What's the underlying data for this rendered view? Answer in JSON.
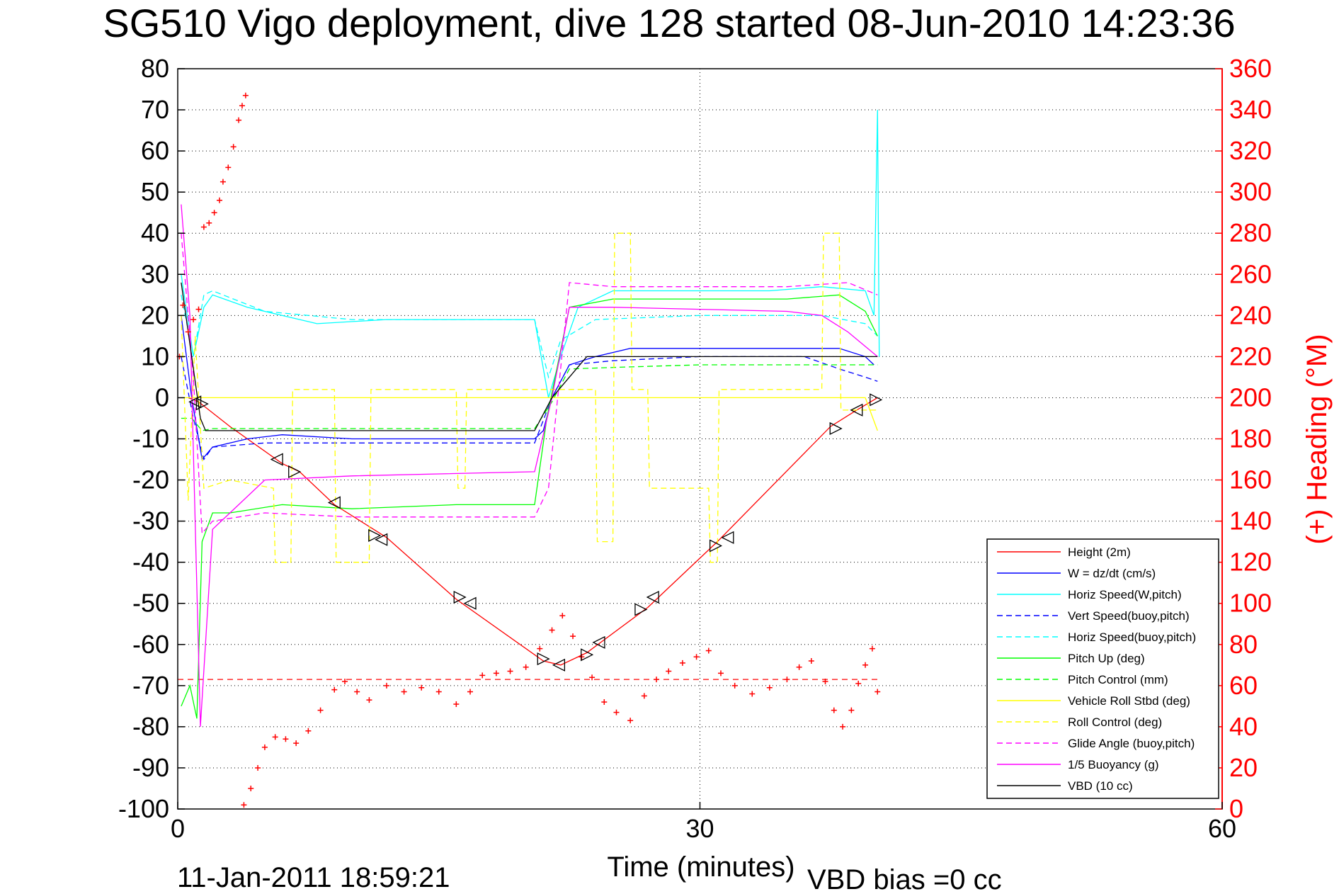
{
  "chart_data": {
    "type": "line",
    "title": "SG510 Vigo deployment, dive 128 started 08-Jun-2010 14:23:36",
    "xlabel": "Time (minutes)",
    "ylabel_right": "(+) Heading (°M)",
    "xlim": [
      0,
      60
    ],
    "ylim": [
      -100,
      80
    ],
    "ylim_right": [
      0,
      360
    ],
    "x_ticks": [
      "0",
      "30",
      "60"
    ],
    "y_ticks": [
      "80",
      "70",
      "60",
      "50",
      "40",
      "30",
      "20",
      "10",
      "0",
      "-10",
      "-20",
      "-30",
      "-40",
      "-50",
      "-60",
      "-70",
      "-80",
      "-90",
      "-100"
    ],
    "y_ticks_right": [
      "360",
      "340",
      "320",
      "300",
      "280",
      "260",
      "240",
      "220",
      "200",
      "180",
      "160",
      "140",
      "120",
      "100",
      "80",
      "60",
      "40",
      "20",
      "0"
    ],
    "grid": true,
    "legend_position": "bottom-right",
    "footer_left": "11-Jan-2011 18:59:21",
    "footer_right": "VBD bias =0 cc",
    "series": [
      {
        "name": "Height (2m)",
        "color": "#ff0000",
        "style": "solid",
        "x": [
          0.6,
          1.2,
          3,
          6,
          7,
          9,
          12,
          16,
          21,
          22,
          23.5,
          27,
          31,
          37.5,
          39,
          40.2
        ],
        "y": [
          0,
          -1,
          -7,
          -16,
          -18,
          -26,
          -34,
          -49,
          -64,
          -65,
          -62,
          -51,
          -35,
          -7,
          -3,
          0
        ]
      },
      {
        "name": "W = dz/dt (cm/s)",
        "color": "#0000ff",
        "style": "solid",
        "x": [
          0.2,
          0.8,
          1.4,
          2,
          4,
          6,
          10,
          14,
          18,
          20.5,
          21,
          21.5,
          22.5,
          24,
          26,
          30,
          34,
          36,
          38,
          39.5,
          40
        ],
        "y": [
          20,
          0,
          -15,
          -12,
          -10,
          -9,
          -10,
          -10,
          -10,
          -10,
          -8,
          0,
          8,
          10,
          12,
          12,
          12,
          12,
          12,
          10,
          8
        ]
      },
      {
        "name": "Horiz Speed(W,pitch)",
        "color": "#00ffff",
        "style": "solid",
        "x": [
          0.2,
          0.9,
          1.5,
          2,
          4,
          8,
          12,
          16,
          20.5,
          21.3,
          22,
          23,
          25,
          30,
          34,
          37,
          39.5,
          40,
          40.2,
          40.3
        ],
        "y": [
          30,
          10,
          22,
          25,
          22,
          18,
          19,
          19,
          19,
          0,
          10,
          22,
          26,
          26,
          26,
          27,
          26,
          20,
          70,
          10
        ]
      },
      {
        "name": "Vert Speed(buoy,pitch)",
        "color": "#0000ff",
        "style": "dashed",
        "x": [
          0.2,
          0.9,
          1.5,
          2,
          5,
          10,
          15,
          20.5,
          21.5,
          22.5,
          25,
          30,
          36,
          38,
          39.5,
          40.2
        ],
        "y": [
          10,
          -5,
          -15,
          -12,
          -11,
          -11,
          -11,
          -11,
          0,
          8,
          9,
          10,
          10,
          7,
          5,
          4
        ]
      },
      {
        "name": "Horiz Speed(buoy,pitch)",
        "color": "#00ffff",
        "style": "dashed",
        "x": [
          0.2,
          0.9,
          1.5,
          2,
          5,
          10,
          20.5,
          21.3,
          22,
          24,
          30,
          37,
          39.5,
          40.2
        ],
        "y": [
          25,
          10,
          25,
          26,
          21,
          19,
          19,
          5,
          14,
          19,
          20,
          20,
          18,
          15
        ]
      },
      {
        "name": "Pitch Up (deg)",
        "color": "#00ff00",
        "style": "solid",
        "x": [
          0.2,
          0.7,
          1.1,
          1.4,
          2,
          3,
          6,
          10,
          16,
          20.5,
          21.2,
          22.5,
          25,
          30,
          35,
          38,
          39.5,
          40.2
        ],
        "y": [
          -75,
          -70,
          -78,
          -35,
          -28,
          -28,
          -26,
          -27,
          -26,
          -26,
          -5,
          22,
          24,
          24,
          24,
          25,
          21,
          15
        ]
      },
      {
        "name": "Pitch Control (mm)",
        "color": "#00ff00",
        "style": "dashed",
        "x": [
          0.2,
          0.8,
          1.4,
          2,
          10,
          20.5,
          21.5,
          22.5,
          26,
          30,
          40.2
        ],
        "y": [
          -5,
          -5,
          -8,
          -7.5,
          -7.5,
          -7.5,
          -1,
          7,
          7.5,
          8,
          8
        ]
      },
      {
        "name": "Vehicle Roll Stbd (deg)",
        "color": "#ffff00",
        "style": "solid",
        "x": [
          0.2,
          1,
          2,
          5,
          8,
          12,
          16,
          20.5,
          22,
          24,
          27,
          30,
          34,
          38,
          39.5,
          40.2
        ],
        "y": [
          0,
          0,
          0,
          0,
          0,
          0,
          0,
          0,
          0,
          0,
          0,
          0,
          0,
          0,
          0,
          -8
        ]
      },
      {
        "name": "Roll Control (deg)",
        "color": "#ffff00",
        "style": "dashed",
        "x": [
          0.2,
          0.6,
          1,
          1.5,
          3,
          5.5,
          5.6,
          6.5,
          6.6,
          9,
          9.1,
          11,
          11.1,
          16,
          16.1,
          16.5,
          16.6,
          20.5,
          24,
          24.1,
          25,
          25.1,
          26,
          26.1,
          27,
          27.1,
          30.5,
          30.6,
          31,
          31.1,
          37,
          37.1,
          38,
          38.1,
          40.2
        ],
        "y": [
          20,
          -25,
          15,
          -22,
          -20,
          -22,
          -40,
          -40,
          2,
          2,
          -40,
          -40,
          2,
          2,
          -22,
          -22,
          2,
          2,
          2,
          -35,
          -35,
          40,
          40,
          2,
          2,
          -22,
          -22,
          -40,
          -40,
          2,
          2,
          40,
          40,
          -3,
          -3
        ]
      },
      {
        "name": "Glide Angle (buoy,pitch)",
        "color": "#ff00ff",
        "style": "dashed",
        "x": [
          0.2,
          0.9,
          1.4,
          2,
          5,
          10,
          15,
          20.5,
          21.3,
          22.5,
          25,
          30,
          35,
          38.5,
          40.2
        ],
        "y": [
          40,
          5,
          -33,
          -30,
          -28,
          -29,
          -29,
          -29,
          -22,
          28,
          27,
          27,
          27,
          28,
          25
        ]
      },
      {
        "name": "1/5 Buoyancy (g)",
        "color": "#ff00ff",
        "style": "solid",
        "x": [
          0.2,
          0.7,
          1.3,
          2,
          3,
          5,
          10,
          20.5,
          21.5,
          22.5,
          25,
          30,
          35,
          37,
          38.5,
          40.2
        ],
        "y": [
          47,
          20,
          -80,
          -32,
          -28,
          -20,
          -19,
          -18,
          0,
          22,
          22,
          21.5,
          21,
          20,
          16,
          10
        ]
      },
      {
        "name": "VBD (10 cc)",
        "color": "#000000",
        "style": "solid",
        "x": [
          0.2,
          0.8,
          1.3,
          1.6,
          5,
          10,
          15,
          20.5,
          21.5,
          23.5,
          28,
          35,
          40.2
        ],
        "y": [
          28,
          10,
          -5,
          -8,
          -8,
          -8,
          -8,
          -8,
          0,
          10,
          10,
          10,
          10
        ]
      }
    ],
    "heading": {
      "name": "Heading",
      "axis": "right",
      "color": "#ff0000",
      "marker": "+",
      "x": [
        0.1,
        0.3,
        0.6,
        0.9,
        1.2,
        1.5,
        1.8,
        2.1,
        2.4,
        2.6,
        2.9,
        3.2,
        3.5,
        3.7,
        3.9,
        3.8,
        4.2,
        4.6,
        5,
        5.6,
        6.2,
        6.8,
        7.5,
        8.2,
        9,
        9.6,
        10.3,
        11,
        12,
        13,
        14,
        15,
        16,
        16.8,
        17.5,
        18.3,
        19.1,
        20,
        20.8,
        21.5,
        22.1,
        22.7,
        23.2,
        23.8,
        24.5,
        25.2,
        26,
        26.8,
        27.5,
        28.2,
        29,
        29.8,
        30.5,
        31.2,
        32,
        33,
        34,
        35,
        35.7,
        36.4,
        37.2,
        37.7,
        38.2,
        38.7,
        39.1,
        39.5,
        39.9,
        40.2
      ],
      "y": [
        220,
        245,
        232,
        238,
        243,
        283,
        285,
        290,
        296,
        305,
        312,
        322,
        335,
        342,
        347,
        2,
        10,
        20,
        30,
        35,
        34,
        32,
        38,
        48,
        58,
        62,
        57,
        53,
        60,
        57,
        59,
        57,
        51,
        57,
        65,
        66,
        67,
        69,
        78,
        87,
        94,
        84,
        74,
        64,
        52,
        47,
        43,
        55,
        63,
        67,
        71,
        74,
        77,
        66,
        60,
        56,
        59,
        63,
        69,
        72,
        62,
        48,
        40,
        48,
        61,
        70,
        78,
        57
      ]
    },
    "triangles": {
      "color": "#000000",
      "x": [
        1,
        1.4,
        5.7,
        6.7,
        9,
        11.3,
        11.7,
        16.2,
        16.8,
        21,
        21.9,
        23.5,
        24.2,
        26.6,
        27.3,
        30.9,
        31.6,
        37.8,
        39,
        40.1
      ],
      "y": [
        -1,
        -1.5,
        -15,
        -18,
        -25.5,
        -33.5,
        -34.5,
        -48.5,
        -50,
        -63.5,
        -65,
        -62.5,
        -59.5,
        -51.5,
        -48.5,
        -36,
        -34,
        -7.5,
        -3,
        -0.5
      ]
    },
    "constant_line": {
      "color": "#ff0000",
      "style": "dashed",
      "y": -68.5,
      "x": [
        0,
        40.2
      ]
    }
  }
}
